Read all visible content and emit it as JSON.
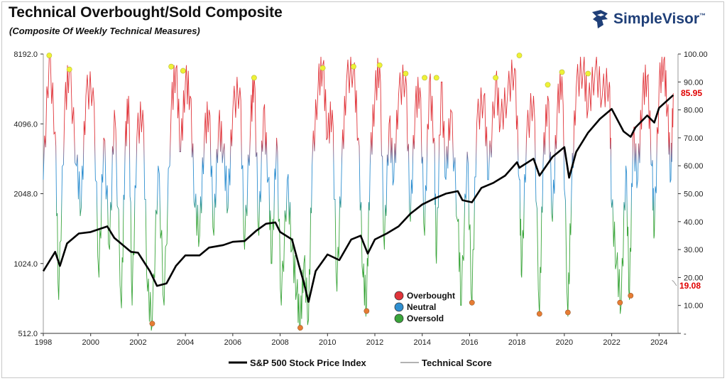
{
  "header": {
    "title": "Technical Overbought/Sold Composite",
    "subtitle": "(Composite Of Weekly Technical Measures)",
    "brand": "SimpleVisor",
    "brand_tm": "™"
  },
  "colors": {
    "overbought": "#e0343a",
    "neutral": "#2f8fd0",
    "oversold": "#3aa53a",
    "price": "#000000",
    "peak_marker": "#eef236",
    "trough_marker": "#e67c34",
    "callout": "#e00000",
    "brand": "#1f3f78"
  },
  "chart_data": {
    "type": "line",
    "x_range": [
      1998,
      2024.8
    ],
    "x_ticks": [
      "1998",
      "2000",
      "2002",
      "2004",
      "2006",
      "2008",
      "2010",
      "2012",
      "2014",
      "2016",
      "2018",
      "2020",
      "2022",
      "2024"
    ],
    "left_axis": {
      "scale": "log2",
      "range": [
        512,
        8192
      ],
      "ticks": [
        "512.0",
        "1024.0",
        "2048.0",
        "4096.0",
        "8192.0"
      ]
    },
    "right_axis": {
      "range": [
        0,
        100
      ],
      "ticks": [
        "-",
        "10.00",
        "20.00",
        "30.00",
        "40.00",
        "50.00",
        "60.00",
        "70.00",
        "80.00",
        "90.00",
        "100.00"
      ]
    },
    "series": [
      {
        "name": "S&P 500 Stock Price Index",
        "axis": "left",
        "points": [
          [
            1998,
            950
          ],
          [
            1998.5,
            1150
          ],
          [
            1998.7,
            1000
          ],
          [
            1999,
            1250
          ],
          [
            1999.5,
            1380
          ],
          [
            2000,
            1400
          ],
          [
            2000.7,
            1480
          ],
          [
            2001,
            1320
          ],
          [
            2001.7,
            1150
          ],
          [
            2002,
            1140
          ],
          [
            2002.5,
            950
          ],
          [
            2002.8,
            820
          ],
          [
            2003.2,
            840
          ],
          [
            2003.6,
            1000
          ],
          [
            2004,
            1110
          ],
          [
            2004.6,
            1110
          ],
          [
            2005,
            1200
          ],
          [
            2005.6,
            1230
          ],
          [
            2006,
            1270
          ],
          [
            2006.5,
            1280
          ],
          [
            2007,
            1420
          ],
          [
            2007.4,
            1520
          ],
          [
            2007.8,
            1540
          ],
          [
            2008,
            1400
          ],
          [
            2008.5,
            1300
          ],
          [
            2008.8,
            1000
          ],
          [
            2009,
            850
          ],
          [
            2009.2,
            700
          ],
          [
            2009.5,
            950
          ],
          [
            2010,
            1120
          ],
          [
            2010.5,
            1060
          ],
          [
            2011,
            1300
          ],
          [
            2011.4,
            1350
          ],
          [
            2011.7,
            1130
          ],
          [
            2012,
            1300
          ],
          [
            2012.5,
            1380
          ],
          [
            2013,
            1480
          ],
          [
            2013.5,
            1680
          ],
          [
            2014,
            1840
          ],
          [
            2014.5,
            1950
          ],
          [
            2015,
            2050
          ],
          [
            2015.5,
            2100
          ],
          [
            2015.7,
            1920
          ],
          [
            2016.1,
            1880
          ],
          [
            2016.5,
            2170
          ],
          [
            2017,
            2280
          ],
          [
            2017.5,
            2450
          ],
          [
            2018,
            2800
          ],
          [
            2018.1,
            2650
          ],
          [
            2018.7,
            2900
          ],
          [
            2018.95,
            2450
          ],
          [
            2019.5,
            2950
          ],
          [
            2020,
            3250
          ],
          [
            2020.2,
            2400
          ],
          [
            2020.5,
            3100
          ],
          [
            2021,
            3750
          ],
          [
            2021.5,
            4300
          ],
          [
            2022,
            4750
          ],
          [
            2022.5,
            3800
          ],
          [
            2022.8,
            3600
          ],
          [
            2023,
            3950
          ],
          [
            2023.5,
            4450
          ],
          [
            2023.8,
            4150
          ],
          [
            2024,
            4800
          ],
          [
            2024.6,
            5450
          ]
        ]
      },
      {
        "name": "Technical Score",
        "axis": "right",
        "points": [
          [
            1998,
            55
          ],
          [
            1998.25,
            99
          ],
          [
            1998.5,
            72
          ],
          [
            1998.65,
            12
          ],
          [
            1998.9,
            80
          ],
          [
            1999.1,
            95
          ],
          [
            1999.4,
            60
          ],
          [
            1999.6,
            45
          ],
          [
            1999.8,
            85
          ],
          [
            2000.1,
            88
          ],
          [
            2000.35,
            20
          ],
          [
            2000.55,
            70
          ],
          [
            2000.8,
            30
          ],
          [
            2001.0,
            80
          ],
          [
            2001.3,
            9
          ],
          [
            2001.45,
            65
          ],
          [
            2001.6,
            85
          ],
          [
            2001.75,
            10
          ],
          [
            2001.95,
            70
          ],
          [
            2002.2,
            80
          ],
          [
            2002.4,
            15
          ],
          [
            2002.6,
            3
          ],
          [
            2002.85,
            60
          ],
          [
            2003.1,
            10
          ],
          [
            2003.4,
            80
          ],
          [
            2003.6,
            95
          ],
          [
            2003.8,
            65
          ],
          [
            2004.0,
            90
          ],
          [
            2004.2,
            85
          ],
          [
            2004.4,
            45
          ],
          [
            2004.6,
            35
          ],
          [
            2004.8,
            70
          ],
          [
            2005.0,
            80
          ],
          [
            2005.2,
            35
          ],
          [
            2005.4,
            75
          ],
          [
            2005.6,
            65
          ],
          [
            2005.8,
            45
          ],
          [
            2006.0,
            80
          ],
          [
            2006.3,
            88
          ],
          [
            2006.5,
            30
          ],
          [
            2006.75,
            75
          ],
          [
            2006.9,
            92
          ],
          [
            2007.1,
            35
          ],
          [
            2007.3,
            80
          ],
          [
            2007.5,
            55
          ],
          [
            2007.65,
            25
          ],
          [
            2007.85,
            70
          ],
          [
            2008.05,
            10
          ],
          [
            2008.3,
            55
          ],
          [
            2008.5,
            30
          ],
          [
            2008.7,
            15
          ],
          [
            2008.85,
            2
          ],
          [
            2009.0,
            25
          ],
          [
            2009.2,
            5
          ],
          [
            2009.35,
            60
          ],
          [
            2009.6,
            88
          ],
          [
            2009.8,
            96
          ],
          [
            2010.0,
            70
          ],
          [
            2010.2,
            80
          ],
          [
            2010.4,
            15
          ],
          [
            2010.6,
            60
          ],
          [
            2010.8,
            90
          ],
          [
            2011.1,
            95
          ],
          [
            2011.3,
            70
          ],
          [
            2011.5,
            20
          ],
          [
            2011.65,
            10
          ],
          [
            2011.8,
            60
          ],
          [
            2012.0,
            85
          ],
          [
            2012.2,
            96
          ],
          [
            2012.4,
            30
          ],
          [
            2012.6,
            75
          ],
          [
            2012.8,
            55
          ],
          [
            2013.0,
            85
          ],
          [
            2013.3,
            92
          ],
          [
            2013.5,
            40
          ],
          [
            2013.7,
            80
          ],
          [
            2013.9,
            88
          ],
          [
            2014.1,
            35
          ],
          [
            2014.3,
            90
          ],
          [
            2014.5,
            70
          ],
          [
            2014.6,
            25
          ],
          [
            2014.8,
            90
          ],
          [
            2015.0,
            55
          ],
          [
            2015.2,
            80
          ],
          [
            2015.5,
            40
          ],
          [
            2015.65,
            10
          ],
          [
            2015.9,
            65
          ],
          [
            2016.1,
            10
          ],
          [
            2016.3,
            75
          ],
          [
            2016.6,
            85
          ],
          [
            2016.8,
            55
          ],
          [
            2017.1,
            90
          ],
          [
            2017.3,
            75
          ],
          [
            2017.6,
            85
          ],
          [
            2017.9,
            95
          ],
          [
            2018.1,
            55
          ],
          [
            2018.2,
            20
          ],
          [
            2018.4,
            70
          ],
          [
            2018.7,
            85
          ],
          [
            2018.95,
            6
          ],
          [
            2019.1,
            60
          ],
          [
            2019.3,
            85
          ],
          [
            2019.5,
            40
          ],
          [
            2019.7,
            80
          ],
          [
            2019.9,
            92
          ],
          [
            2020.15,
            6
          ],
          [
            2020.3,
            50
          ],
          [
            2020.5,
            88
          ],
          [
            2020.8,
            95
          ],
          [
            2021.0,
            80
          ],
          [
            2021.3,
            94
          ],
          [
            2021.6,
            85
          ],
          [
            2021.9,
            90
          ],
          [
            2022.0,
            45
          ],
          [
            2022.2,
            25
          ],
          [
            2022.4,
            10
          ],
          [
            2022.6,
            60
          ],
          [
            2022.75,
            12
          ],
          [
            2022.9,
            70
          ],
          [
            2023.1,
            55
          ],
          [
            2023.3,
            85
          ],
          [
            2023.5,
            92
          ],
          [
            2023.7,
            60
          ],
          [
            2023.8,
            35
          ],
          [
            2024.0,
            88
          ],
          [
            2024.2,
            98
          ],
          [
            2024.35,
            80
          ],
          [
            2024.5,
            55
          ],
          [
            2024.6,
            85.95
          ]
        ]
      }
    ],
    "peak_markers": [
      [
        1998.25,
        99.5
      ],
      [
        1999.1,
        94.5
      ],
      [
        2003.4,
        95.5
      ],
      [
        2003.9,
        94
      ],
      [
        2006.9,
        91.5
      ],
      [
        2009.8,
        95
      ],
      [
        2011.1,
        95.5
      ],
      [
        2012.2,
        96
      ],
      [
        2013.3,
        93
      ],
      [
        2014.1,
        91.5
      ],
      [
        2014.6,
        91.5
      ],
      [
        2017.1,
        91.5
      ],
      [
        2018.1,
        99.5
      ],
      [
        2019.3,
        89
      ],
      [
        2019.9,
        93.5
      ],
      [
        2021.0,
        93
      ]
    ],
    "trough_markers": [
      [
        2002.6,
        3.5
      ],
      [
        2008.85,
        2
      ],
      [
        2011.65,
        8
      ],
      [
        2016.1,
        11
      ],
      [
        2018.95,
        7
      ],
      [
        2020.15,
        7.5
      ],
      [
        2022.35,
        11
      ],
      [
        2022.8,
        13.5
      ]
    ],
    "callouts": {
      "latest_score": "85.95",
      "reference": "19.08"
    },
    "legend": {
      "bands": [
        "Overbought",
        "Neutral",
        "Oversold"
      ],
      "series": [
        "S&P 500 Stock Price Index",
        "Technical Score"
      ]
    },
    "bands": {
      "overbought_above": 65,
      "oversold_below": 45
    }
  }
}
